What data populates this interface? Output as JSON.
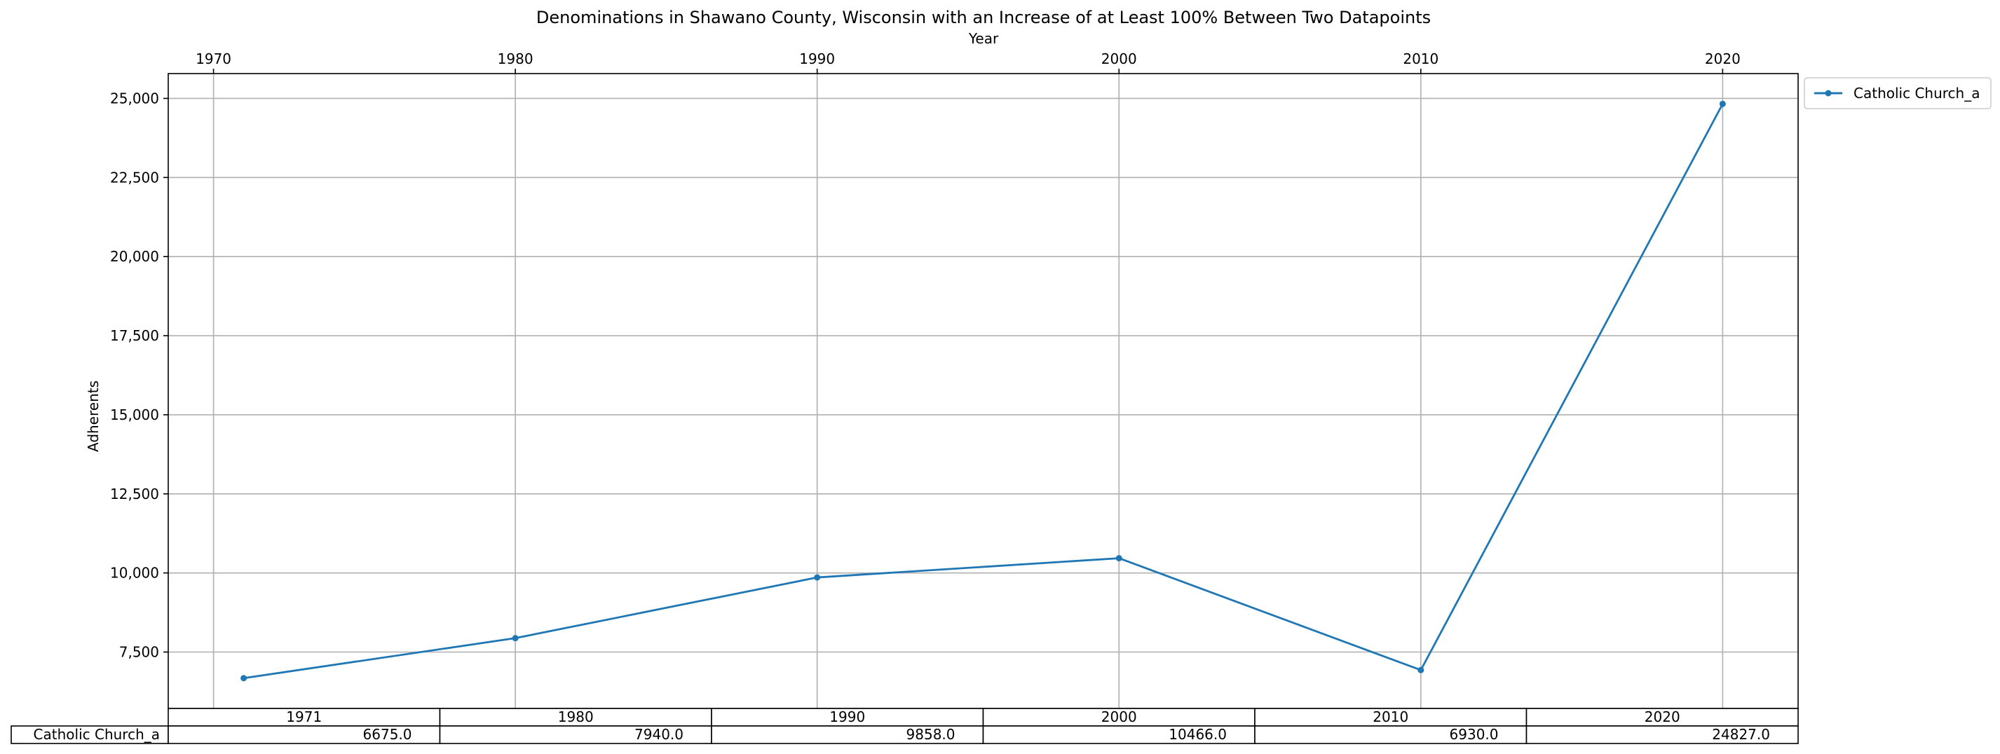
{
  "chart_data": {
    "type": "line",
    "title": "Denominations in Shawano County, Wisconsin with an Increase of at Least 100% Between Two Datapoints",
    "xlabel": "Year",
    "ylabel": "Adherents",
    "x_axis_position": "top",
    "x_ticks": [
      "1970",
      "1980",
      "1990",
      "2000",
      "2010",
      "2020"
    ],
    "xlim": [
      1968.5,
      2022.5
    ],
    "y_ticks": [
      "7,500",
      "10,000",
      "12,500",
      "15,000",
      "17,500",
      "20,000",
      "22,500",
      "25,000"
    ],
    "ylim": [
      5717,
      25785
    ],
    "grid": true,
    "legend_placement": "outside-top-right",
    "x": [
      1971,
      1980,
      1990,
      2000,
      2010,
      2020
    ],
    "series": [
      {
        "name": "Catholic Church_a",
        "color": "#1f77b4",
        "marker": "dot",
        "values": [
          6675,
          7940,
          9858,
          10466,
          6930,
          24827
        ]
      }
    ],
    "table": {
      "header": [
        "1971",
        "1980",
        "1990",
        "2000",
        "2010",
        "2020"
      ],
      "rows": [
        {
          "label": "Catholic Church_a",
          "cells": [
            "6675.0",
            "7940.0",
            "9858.0",
            "10466.0",
            "6930.0",
            "24827.0"
          ]
        }
      ]
    }
  }
}
